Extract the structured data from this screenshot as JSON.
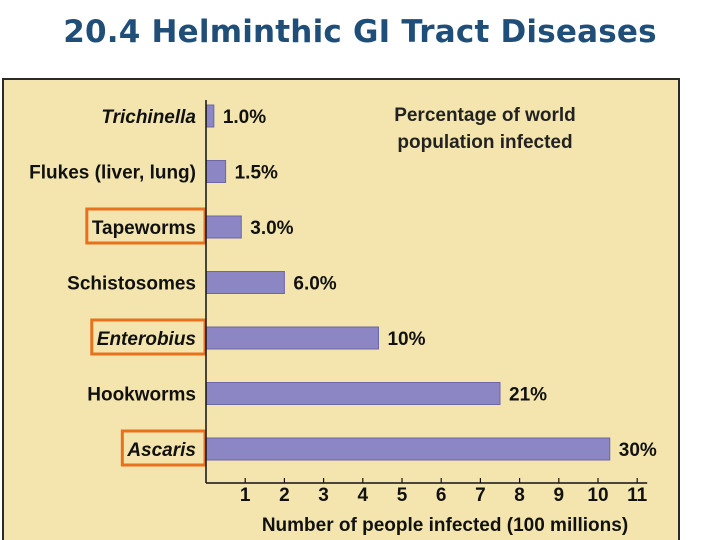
{
  "slide": {
    "title": "20.4 Helminthic GI Tract Diseases"
  },
  "colors": {
    "bar": "#8c86c4",
    "bar_edge": "#6d67a8",
    "frame_bg": "#f3e5ad",
    "highlight_box": "#e8711d",
    "title": "#1f4e79"
  },
  "chart_data": {
    "type": "bar",
    "orientation": "horizontal",
    "title": "Percentage of world population infected",
    "title_lines": [
      "Percentage of world",
      "population infected"
    ],
    "xlabel": "Number of people infected (100 millions)",
    "ylabel": "",
    "xlim": [
      0,
      11
    ],
    "x_ticks": [
      1,
      2,
      3,
      4,
      5,
      6,
      7,
      8,
      9,
      10,
      11
    ],
    "grid": false,
    "categories": [
      "Trichinella",
      "Flukes (liver, lung)",
      "Tapeworms",
      "Schistosomes",
      "Enterobius",
      "Hookworms",
      "Ascaris"
    ],
    "italic_categories": [
      "Trichinella",
      "Enterobius",
      "Ascaris"
    ],
    "highlighted_categories": [
      "Tapeworms",
      "Enterobius",
      "Ascaris"
    ],
    "values": [
      0.2,
      0.5,
      0.9,
      2.0,
      4.4,
      7.5,
      10.3
    ],
    "data_labels": [
      "1.0%",
      "1.5%",
      "3.0%",
      "6.0%",
      "10%",
      "21%",
      "30%"
    ]
  }
}
